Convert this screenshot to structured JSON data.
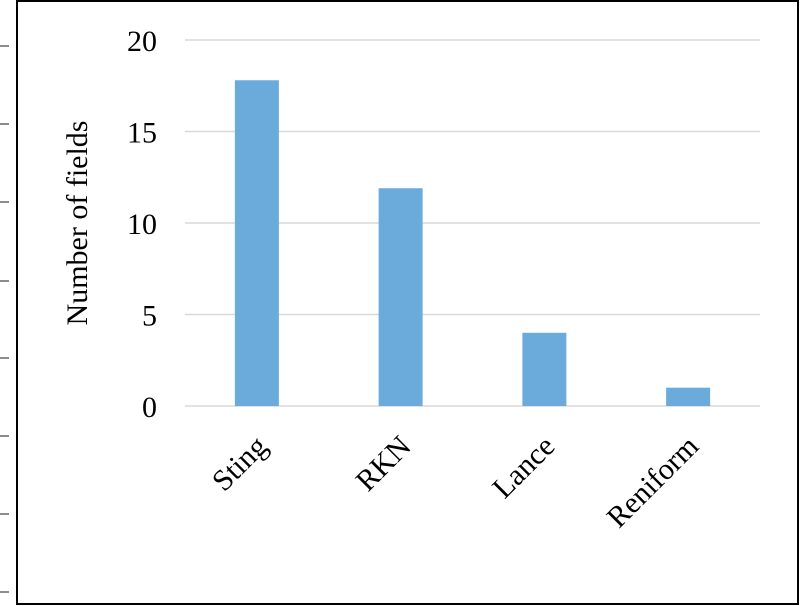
{
  "chart_data": {
    "type": "bar",
    "title": "",
    "xlabel": "",
    "ylabel": "Number of fields",
    "categories": [
      "Sting",
      "RKN",
      "Lance",
      "Reniform"
    ],
    "values": [
      17.8,
      11.9,
      4,
      1
    ],
    "ylim": [
      0,
      20
    ],
    "yticks": [
      "0",
      "5",
      "10",
      "15",
      "20"
    ],
    "grid": true,
    "legend": "none",
    "colors": {
      "bar": "#6aabdc",
      "grid": "#d9d9d9",
      "frame": "#000000",
      "left_dashes": "#8c8c8c"
    }
  }
}
